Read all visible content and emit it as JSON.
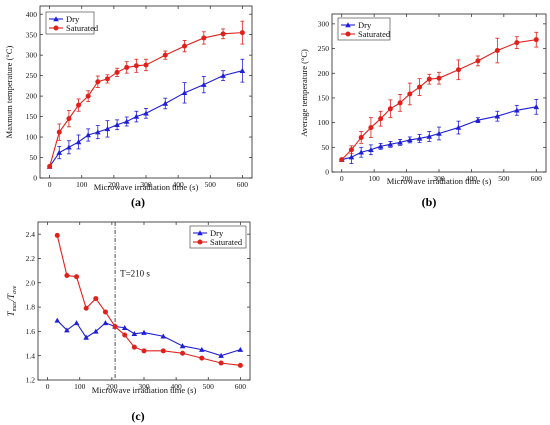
{
  "figure": {
    "colors": {
      "dry": "#1f1fd6",
      "saturated": "#e0211b"
    }
  },
  "chart_data": [
    {
      "panel": "(a)",
      "type": "line",
      "xlabel": "Microwave irradiation time (s)",
      "ylabel": "Maxmum temperature (°C)",
      "xlim": [
        -30,
        630
      ],
      "ylim": [
        0,
        420
      ],
      "xticks": [
        0,
        100,
        200,
        300,
        400,
        500,
        600
      ],
      "yticks": [
        0,
        50,
        100,
        150,
        200,
        250,
        300,
        350,
        400
      ],
      "legend": "top-left",
      "series": [
        {
          "name": "Dry",
          "marker": "triangle",
          "x": [
            0,
            30,
            60,
            90,
            120,
            150,
            180,
            210,
            240,
            270,
            300,
            360,
            420,
            480,
            540,
            600
          ],
          "y": [
            28,
            62,
            75,
            88,
            105,
            112,
            120,
            130,
            138,
            150,
            158,
            182,
            208,
            228,
            250,
            262
          ],
          "err": [
            3,
            15,
            16,
            17,
            15,
            16,
            20,
            12,
            11,
            13,
            12,
            13,
            25,
            20,
            12,
            28
          ]
        },
        {
          "name": "Saturated",
          "marker": "circle",
          "x": [
            0,
            30,
            60,
            90,
            120,
            150,
            180,
            210,
            240,
            270,
            300,
            360,
            420,
            480,
            540,
            600
          ],
          "y": [
            28,
            112,
            145,
            178,
            200,
            235,
            242,
            258,
            270,
            274,
            276,
            300,
            322,
            342,
            352,
            355
          ],
          "err": [
            3,
            20,
            20,
            15,
            13,
            14,
            10,
            10,
            14,
            16,
            14,
            10,
            14,
            15,
            12,
            28
          ]
        }
      ]
    },
    {
      "panel": "(b)",
      "type": "line",
      "xlabel": "Microwave irradiation time (s)",
      "ylabel": "Average temperature (°C)",
      "xlim": [
        -30,
        630
      ],
      "ylim": [
        0,
        320
      ],
      "xticks": [
        0,
        100,
        200,
        300,
        400,
        500,
        600
      ],
      "yticks": [
        0,
        50,
        100,
        150,
        200,
        250,
        300
      ],
      "legend": "top-left",
      "series": [
        {
          "name": "Dry",
          "marker": "triangle",
          "x": [
            0,
            30,
            60,
            90,
            120,
            150,
            180,
            210,
            240,
            270,
            300,
            360,
            420,
            480,
            540,
            600
          ],
          "y": [
            25,
            30,
            40,
            45,
            52,
            56,
            60,
            65,
            68,
            72,
            78,
            90,
            105,
            113,
            125,
            132
          ],
          "err": [
            2,
            13,
            10,
            10,
            6,
            6,
            6,
            6,
            8,
            10,
            13,
            13,
            5,
            10,
            10,
            15
          ]
        },
        {
          "name": "Saturated",
          "marker": "circle",
          "x": [
            0,
            30,
            60,
            90,
            120,
            150,
            180,
            210,
            240,
            270,
            300,
            360,
            420,
            480,
            540,
            600
          ],
          "y": [
            25,
            45,
            70,
            90,
            108,
            128,
            140,
            158,
            172,
            188,
            190,
            207,
            225,
            246,
            262,
            268
          ],
          "err": [
            2,
            8,
            12,
            20,
            15,
            18,
            17,
            22,
            17,
            10,
            12,
            20,
            10,
            25,
            12,
            15
          ]
        }
      ]
    },
    {
      "panel": "(c)",
      "type": "line",
      "xlabel": "Microwave irradiation time (s)",
      "ylabel_main": "T",
      "ylabel_sub1": "max",
      "ylabel_slash": "/T",
      "ylabel_sub2": "ave",
      "xlim": [
        -30,
        630
      ],
      "ylim": [
        1.2,
        2.5
      ],
      "xticks": [
        0,
        100,
        200,
        300,
        400,
        500,
        600
      ],
      "yticks": [
        1.2,
        1.4,
        1.6,
        1.8,
        2.0,
        2.2,
        2.4
      ],
      "legend": "top-right",
      "annotation": {
        "text": "T=210 s",
        "x": 210
      },
      "series": [
        {
          "name": "Dry",
          "marker": "triangle",
          "x": [
            30,
            60,
            90,
            120,
            150,
            180,
            210,
            240,
            270,
            300,
            360,
            420,
            480,
            540,
            600
          ],
          "y": [
            1.69,
            1.61,
            1.67,
            1.55,
            1.6,
            1.67,
            1.64,
            1.63,
            1.58,
            1.59,
            1.56,
            1.48,
            1.45,
            1.4,
            1.45
          ]
        },
        {
          "name": "Saturated",
          "marker": "circle",
          "x": [
            30,
            60,
            90,
            120,
            150,
            180,
            210,
            240,
            270,
            300,
            360,
            420,
            480,
            540,
            600
          ],
          "y": [
            2.39,
            2.06,
            2.05,
            1.79,
            1.87,
            1.76,
            1.64,
            1.57,
            1.47,
            1.44,
            1.44,
            1.42,
            1.38,
            1.34,
            1.32
          ]
        }
      ]
    }
  ]
}
